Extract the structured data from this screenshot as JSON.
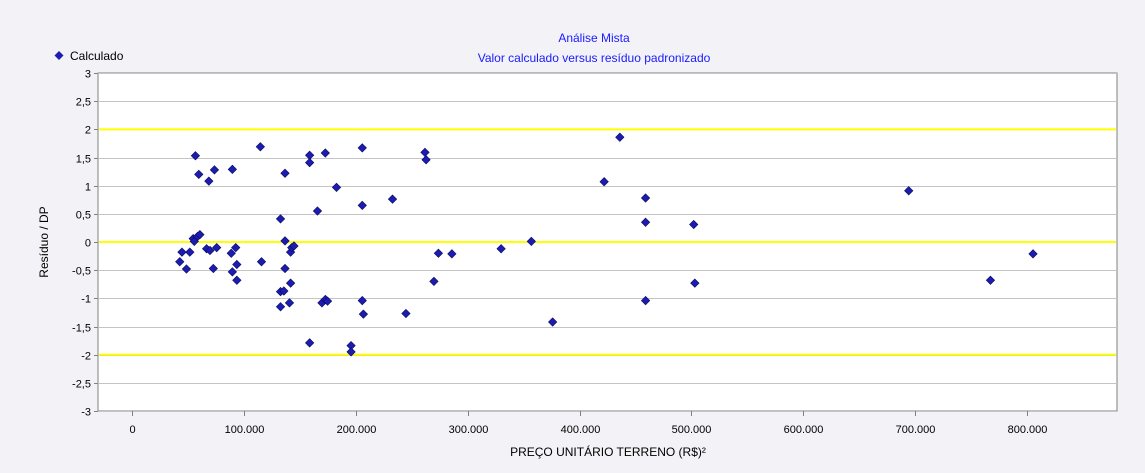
{
  "chart_data": {
    "type": "scatter",
    "title": "Análise Mista",
    "subtitle": "Valor calculado versus resíduo padronizado",
    "xlabel": "PREÇO UNITÁRIO TERRENO (R$)²",
    "ylabel": "Resíduo / DP",
    "xlim": [
      -30000,
      880000
    ],
    "ylim": [
      -3,
      3
    ],
    "x_ticks": [
      0,
      100000,
      200000,
      300000,
      400000,
      500000,
      600000,
      700000,
      800000
    ],
    "x_tick_labels": [
      "0",
      "100.000",
      "200.000",
      "300.000",
      "400.000",
      "500.000",
      "600.000",
      "700.000",
      "800.000"
    ],
    "y_ticks": [
      3,
      2.5,
      2,
      1.5,
      1,
      0.5,
      0,
      -0.5,
      -1,
      -1.5,
      -2,
      -2.5,
      -3
    ],
    "y_tick_labels": [
      "3",
      "2,5",
      "2",
      "1,5",
      "1",
      "0,5",
      "0",
      "-0,5",
      "-1",
      "-1,5",
      "-2",
      "-2,5",
      "-3"
    ],
    "grid": true,
    "legend": {
      "position": "top-left",
      "entries": [
        "Calculado"
      ]
    },
    "reference_lines": [
      {
        "y": 2,
        "color": "#ffff00"
      },
      {
        "y": 0,
        "color": "#ffff00"
      },
      {
        "y": -2,
        "color": "#ffff00"
      }
    ],
    "series": [
      {
        "name": "Calculado",
        "color": "#1c1cb0",
        "marker": "diamond",
        "points": [
          [
            43000,
            -0.35
          ],
          [
            45000,
            -0.18
          ],
          [
            49000,
            -0.48
          ],
          [
            52000,
            -0.18
          ],
          [
            55000,
            0.06
          ],
          [
            56000,
            0.01
          ],
          [
            57000,
            1.53
          ],
          [
            59000,
            0.1
          ],
          [
            60000,
            1.2
          ],
          [
            61000,
            0.13
          ],
          [
            67000,
            -0.12
          ],
          [
            69000,
            1.08
          ],
          [
            70000,
            -0.15
          ],
          [
            73000,
            -0.47
          ],
          [
            74000,
            1.28
          ],
          [
            76000,
            -0.1
          ],
          [
            89000,
            -0.2
          ],
          [
            90000,
            1.29
          ],
          [
            90000,
            -0.53
          ],
          [
            93000,
            -0.1
          ],
          [
            94000,
            -0.4
          ],
          [
            94000,
            -0.68
          ],
          [
            115000,
            1.69
          ],
          [
            116000,
            -0.35
          ],
          [
            133000,
            0.41
          ],
          [
            133000,
            -0.88
          ],
          [
            133000,
            -1.15
          ],
          [
            136000,
            -0.87
          ],
          [
            137000,
            1.22
          ],
          [
            137000,
            0.02
          ],
          [
            137000,
            -0.47
          ],
          [
            141000,
            -1.08
          ],
          [
            142000,
            -0.18
          ],
          [
            142000,
            -0.73
          ],
          [
            143000,
            -0.1
          ],
          [
            145000,
            -0.07
          ],
          [
            159000,
            1.54
          ],
          [
            159000,
            1.41
          ],
          [
            159000,
            -1.79
          ],
          [
            166000,
            0.55
          ],
          [
            170000,
            -1.08
          ],
          [
            173000,
            1.58
          ],
          [
            173000,
            -1.02
          ],
          [
            175000,
            -1.05
          ],
          [
            183000,
            0.97
          ],
          [
            196000,
            -1.84
          ],
          [
            196000,
            -1.95
          ],
          [
            206000,
            1.67
          ],
          [
            206000,
            0.65
          ],
          [
            206000,
            -1.04
          ],
          [
            207000,
            -1.28
          ],
          [
            233000,
            0.76
          ],
          [
            245000,
            -1.27
          ],
          [
            262000,
            1.59
          ],
          [
            263000,
            1.46
          ],
          [
            270000,
            -0.7
          ],
          [
            274000,
            -0.2
          ],
          [
            286000,
            -0.21
          ],
          [
            330000,
            -0.12
          ],
          [
            357000,
            0.01
          ],
          [
            376000,
            -1.42
          ],
          [
            422000,
            1.07
          ],
          [
            436000,
            1.86
          ],
          [
            459000,
            0.78
          ],
          [
            459000,
            0.35
          ],
          [
            459000,
            -1.04
          ],
          [
            502000,
            0.31
          ],
          [
            503000,
            -0.73
          ],
          [
            694000,
            0.91
          ],
          [
            767000,
            -0.68
          ],
          [
            805000,
            -0.21
          ]
        ]
      }
    ]
  }
}
